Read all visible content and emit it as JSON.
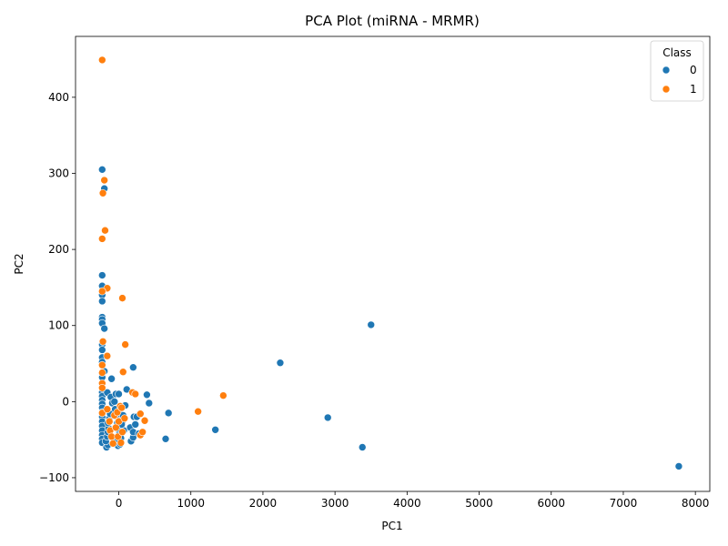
{
  "chart_data": {
    "type": "scatter",
    "title": "PCA Plot (miRNA - MRMR)",
    "xlabel": "PC1",
    "ylabel": "PC2",
    "xlim": [
      -600,
      8200
    ],
    "ylim": [
      -118,
      480
    ],
    "x_ticks": [
      0,
      1000,
      2000,
      3000,
      4000,
      5000,
      6000,
      7000,
      8000
    ],
    "y_ticks": [
      -100,
      0,
      100,
      200,
      300,
      400
    ],
    "grid": false,
    "legend": {
      "title": "Class",
      "position": "top-right",
      "entries": [
        {
          "label": "0",
          "color": "#1f77b4"
        },
        {
          "label": "1",
          "color": "#ff7f0e"
        }
      ]
    },
    "series": [
      {
        "name": "0",
        "color": "#1f77b4",
        "points": [
          [
            -230,
            305
          ],
          [
            -200,
            280
          ],
          [
            -230,
            166
          ],
          [
            -230,
            152
          ],
          [
            -230,
            140
          ],
          [
            -230,
            132
          ],
          [
            -230,
            111
          ],
          [
            -230,
            108
          ],
          [
            -230,
            103
          ],
          [
            -200,
            96
          ],
          [
            -230,
            75
          ],
          [
            -230,
            68
          ],
          [
            -230,
            58
          ],
          [
            -230,
            52
          ],
          [
            -200,
            40
          ],
          [
            -230,
            32
          ],
          [
            -230,
            12
          ],
          [
            -230,
            7
          ],
          [
            -230,
            2
          ],
          [
            -230,
            -3
          ],
          [
            -230,
            -8
          ],
          [
            -230,
            -14
          ],
          [
            -230,
            -20
          ],
          [
            -230,
            -26
          ],
          [
            -230,
            -32
          ],
          [
            -230,
            -38
          ],
          [
            -230,
            -44
          ],
          [
            -230,
            -49
          ],
          [
            -230,
            -54
          ],
          [
            -170,
            -60
          ],
          [
            -150,
            -57
          ],
          [
            -180,
            -52
          ],
          [
            -160,
            -46
          ],
          [
            -150,
            -40
          ],
          [
            -140,
            -35
          ],
          [
            -150,
            -28
          ],
          [
            -130,
            -22
          ],
          [
            -120,
            -16
          ],
          [
            -160,
            12
          ],
          [
            -110,
            6
          ],
          [
            -90,
            -2
          ],
          [
            -100,
            30
          ],
          [
            -60,
            0
          ],
          [
            -50,
            -10
          ],
          [
            -40,
            10
          ],
          [
            -30,
            -20
          ],
          [
            -20,
            -28
          ],
          [
            -10,
            -36
          ],
          [
            0,
            -44
          ],
          [
            -30,
            -50
          ],
          [
            -10,
            -58
          ],
          [
            20,
            -56
          ],
          [
            30,
            -48
          ],
          [
            0,
            10
          ],
          [
            20,
            -16
          ],
          [
            50,
            -26
          ],
          [
            70,
            -38
          ],
          [
            90,
            -5
          ],
          [
            60,
            -18
          ],
          [
            40,
            -30
          ],
          [
            110,
            16
          ],
          [
            160,
            -34
          ],
          [
            170,
            -52
          ],
          [
            200,
            -47
          ],
          [
            200,
            -40
          ],
          [
            210,
            -20
          ],
          [
            230,
            -30
          ],
          [
            250,
            -20
          ],
          [
            280,
            -42
          ],
          [
            200,
            45
          ],
          [
            390,
            9
          ],
          [
            420,
            -2
          ],
          [
            690,
            -15
          ],
          [
            650,
            -49
          ],
          [
            1340,
            -37
          ],
          [
            2240,
            51
          ],
          [
            2900,
            -21
          ],
          [
            3380,
            -60
          ],
          [
            3500,
            101
          ],
          [
            7770,
            -85
          ]
        ]
      },
      {
        "name": "1",
        "color": "#ff7f0e",
        "points": [
          [
            -230,
            449
          ],
          [
            -200,
            291
          ],
          [
            -220,
            274
          ],
          [
            -190,
            225
          ],
          [
            -230,
            214
          ],
          [
            -160,
            149
          ],
          [
            -230,
            145
          ],
          [
            50,
            136
          ],
          [
            -220,
            79
          ],
          [
            90,
            75
          ],
          [
            -160,
            60
          ],
          [
            -230,
            48
          ],
          [
            60,
            39
          ],
          [
            -230,
            38
          ],
          [
            -230,
            24
          ],
          [
            -230,
            18
          ],
          [
            190,
            12
          ],
          [
            230,
            10
          ],
          [
            -230,
            -15
          ],
          [
            -160,
            -10
          ],
          [
            -130,
            -26
          ],
          [
            -120,
            -38
          ],
          [
            -100,
            -46
          ],
          [
            -80,
            -55
          ],
          [
            -60,
            -18
          ],
          [
            -40,
            -34
          ],
          [
            -20,
            -14
          ],
          [
            -10,
            -46
          ],
          [
            0,
            -26
          ],
          [
            20,
            -6
          ],
          [
            30,
            -54
          ],
          [
            50,
            -40
          ],
          [
            80,
            -22
          ],
          [
            40,
            -8
          ],
          [
            300,
            -16
          ],
          [
            300,
            -44
          ],
          [
            330,
            -40
          ],
          [
            360,
            -25
          ],
          [
            1100,
            -13
          ],
          [
            1450,
            8
          ]
        ]
      }
    ]
  }
}
